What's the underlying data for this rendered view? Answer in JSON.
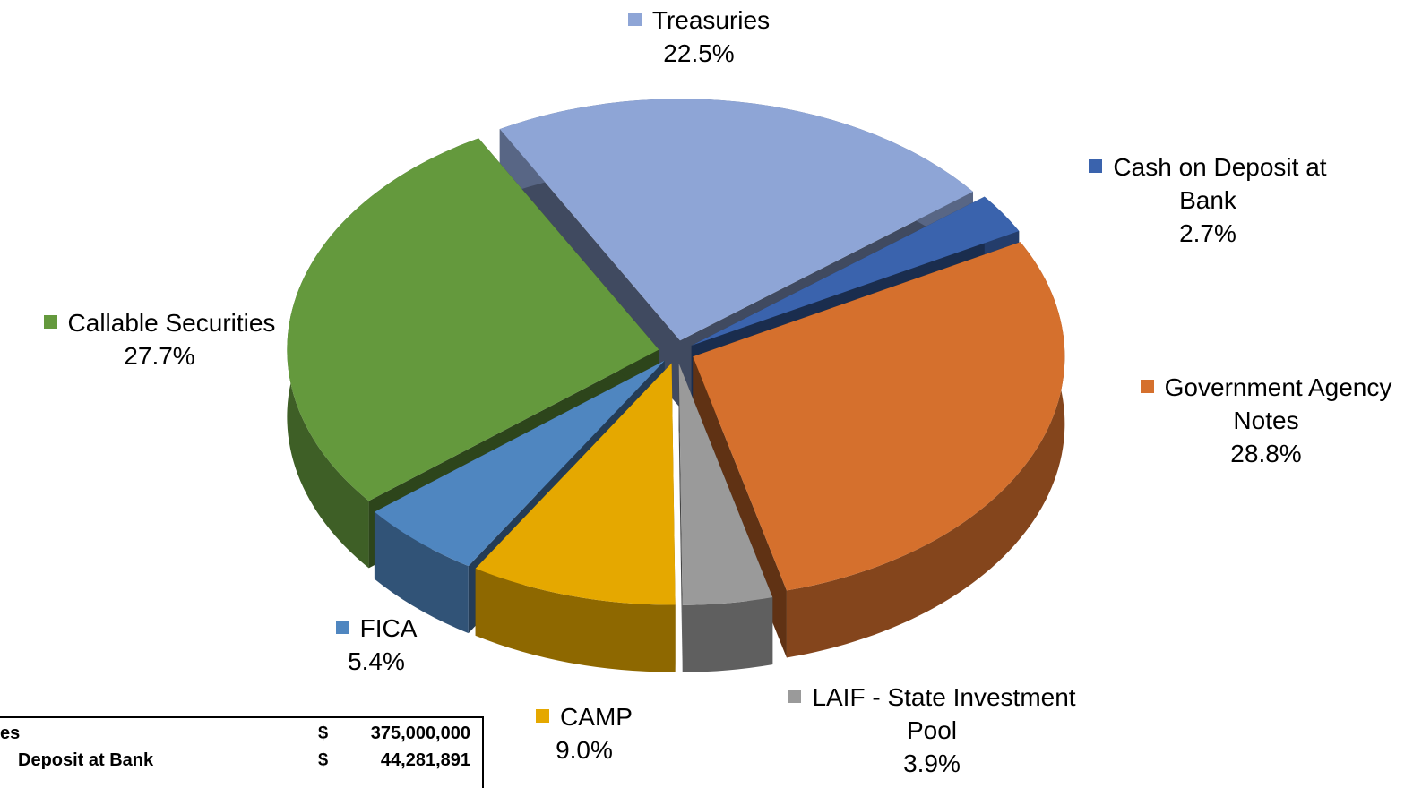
{
  "chart_data": {
    "type": "pie",
    "categories": [
      "Treasuries",
      "Cash on Deposit at Bank",
      "Government Agency Notes",
      "LAIF - State Investment Pool",
      "CAMP",
      "FICA",
      "Callable Securities"
    ],
    "values": [
      22.5,
      2.7,
      28.8,
      3.9,
      9.0,
      5.4,
      27.7
    ],
    "value_labels": [
      "22.5%",
      "2.7%",
      "28.8%",
      "3.9%",
      "9.0%",
      "5.4%",
      "27.7%"
    ],
    "colors": [
      "#8ea5d6",
      "#3a63ad",
      "#d5702d",
      "#9a9a9a",
      "#e5a800",
      "#4f86c0",
      "#64993d"
    ]
  },
  "table": {
    "rows": [
      [
        "es",
        "$",
        "375,000,000"
      ],
      [
        "Deposit at Bank",
        "$",
        "44,281,891"
      ]
    ]
  }
}
